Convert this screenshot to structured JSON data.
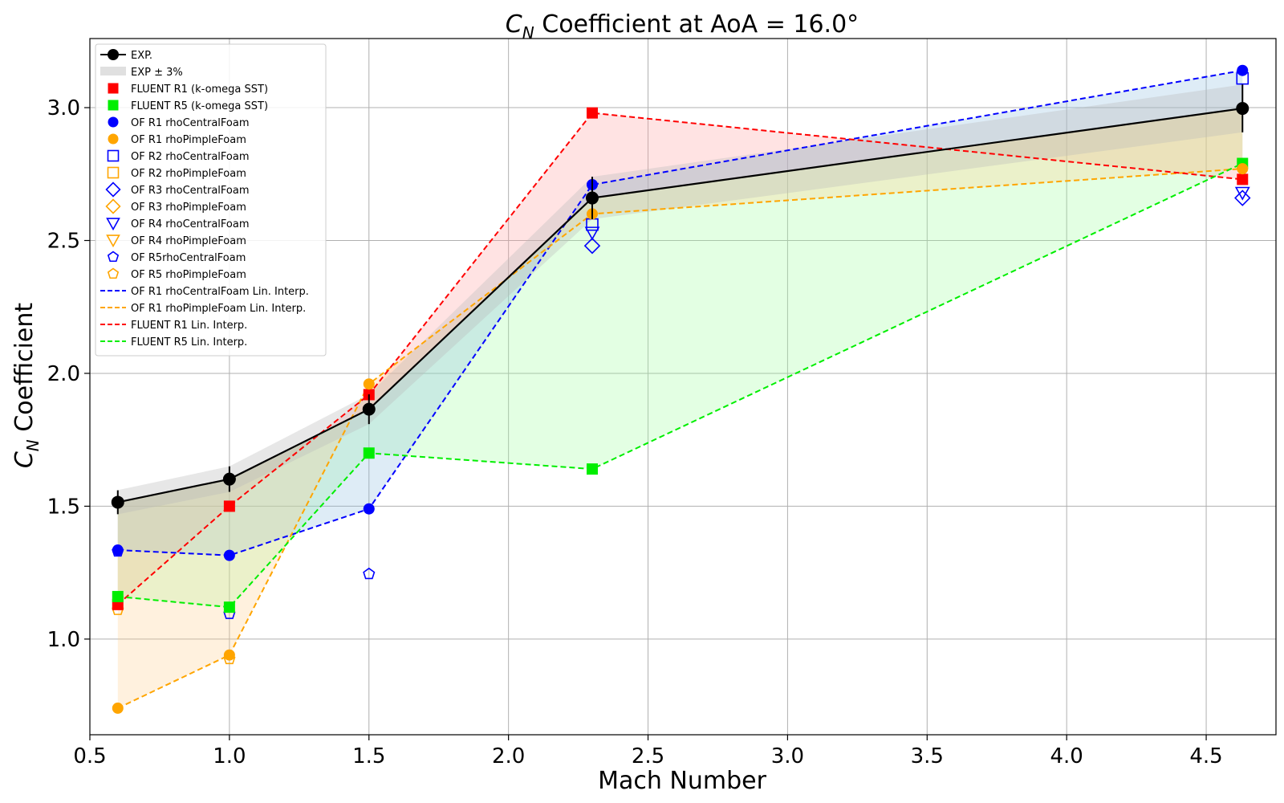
{
  "chart_data": {
    "type": "line",
    "title": {
      "main": "C",
      "sub": "N",
      "rest": " Coefficient at AoA = 16.0°"
    },
    "xlabel": "Mach Number",
    "ylabel": {
      "main": "C",
      "sub": "N",
      "rest": " Coefficient"
    },
    "xlim": [
      0.5,
      4.75
    ],
    "ylim": [
      0.64,
      3.26
    ],
    "xticks": [
      0.5,
      1.0,
      1.5,
      2.0,
      2.5,
      3.0,
      3.5,
      4.0,
      4.5
    ],
    "xtick_labels": [
      "0.5",
      "1.0",
      "1.5",
      "2.0",
      "2.5",
      "3.0",
      "3.5",
      "4.0",
      "4.5"
    ],
    "yticks": [
      1.0,
      1.5,
      2.0,
      2.5,
      3.0
    ],
    "ytick_labels": [
      "1.0",
      "1.5",
      "2.0",
      "2.5",
      "3.0"
    ],
    "grid": true,
    "legend_position": "top-left",
    "x": [
      0.6,
      1.0,
      1.5,
      2.3,
      4.63
    ],
    "exp": {
      "name": "EXP.",
      "color": "#000000",
      "values": [
        1.515,
        1.602,
        1.865,
        2.66,
        2.997
      ],
      "yerr": [
        0.045,
        0.048,
        0.056,
        0.08,
        0.09
      ]
    },
    "exp_band": {
      "name": "EXP ± 3%",
      "fraction": 0.03,
      "color": "#bbbbbb"
    },
    "fills": [
      {
        "series": "fluent_r1",
        "color": "#ff9999"
      },
      {
        "series": "fluent_r5",
        "color": "#99ff99"
      },
      {
        "series": "of_r1_central",
        "color": "#88bbdd"
      },
      {
        "series": "of_r1_pimple",
        "color": "#ffcc88"
      }
    ],
    "series": [
      {
        "key": "fluent_r1",
        "name": "FLUENT R1 (k-omega SST)",
        "marker": "square",
        "filled": true,
        "color": "#ff0000",
        "values": [
          1.13,
          1.5,
          1.92,
          2.98,
          2.73
        ]
      },
      {
        "key": "fluent_r5",
        "name": "FLUENT R5 (k-omega SST)",
        "marker": "square",
        "filled": true,
        "color": "#00ee00",
        "values": [
          1.16,
          1.12,
          1.7,
          1.64,
          2.79
        ]
      },
      {
        "key": "of_r1_central",
        "name": "OF R1 rhoCentralFoam",
        "marker": "circle",
        "filled": true,
        "color": "#0000ff",
        "values": [
          1.335,
          1.315,
          1.49,
          2.71,
          3.14
        ]
      },
      {
        "key": "of_r1_pimple",
        "name": "OF R1 rhoPimpleFoam",
        "marker": "circle",
        "filled": true,
        "color": "#ffa500",
        "values": [
          0.74,
          0.94,
          1.96,
          2.6,
          2.77
        ]
      },
      {
        "key": "of_r2_central",
        "name": "OF R2 rhoCentralFoam",
        "marker": "square",
        "filled": false,
        "color": "#0000ff",
        "values": [
          null,
          null,
          null,
          2.56,
          3.11
        ]
      },
      {
        "key": "of_r2_pimple",
        "name": "OF R2 rhoPimpleFoam",
        "marker": "square",
        "filled": false,
        "color": "#ffa500",
        "values": [
          null,
          null,
          null,
          null,
          null
        ]
      },
      {
        "key": "of_r3_central",
        "name": "OF R3 rhoCentralFoam",
        "marker": "diamond",
        "filled": false,
        "color": "#0000ff",
        "values": [
          null,
          null,
          null,
          2.48,
          2.66
        ]
      },
      {
        "key": "of_r3_pimple",
        "name": "OF R3 rhoPimpleFoam",
        "marker": "diamond",
        "filled": false,
        "color": "#ffa500",
        "values": [
          null,
          null,
          null,
          null,
          null
        ]
      },
      {
        "key": "of_r4_central",
        "name": "OF R4 rhoCentralFoam",
        "marker": "triangle-down",
        "filled": false,
        "color": "#0000ff",
        "values": [
          null,
          null,
          null,
          2.53,
          2.68
        ]
      },
      {
        "key": "of_r4_pimple",
        "name": "OF R4 rhoPimpleFoam",
        "marker": "triangle-down",
        "filled": false,
        "color": "#ffa500",
        "values": [
          null,
          null,
          null,
          null,
          null
        ]
      },
      {
        "key": "of_r5_central",
        "name": "OF R5rhoCentralFoam",
        "marker": "pentagon",
        "filled": false,
        "color": "#0000ff",
        "values": [
          1.33,
          1.095,
          1.245,
          null,
          null
        ]
      },
      {
        "key": "of_r5_pimple",
        "name": "OF R5 rhoPimpleFoam",
        "marker": "pentagon",
        "filled": false,
        "color": "#ffa500",
        "values": [
          1.11,
          0.925,
          null,
          null,
          null
        ]
      }
    ],
    "interp_lines": [
      {
        "series": "of_r1_central",
        "name": "OF R1 rhoCentralFoam Lin. Interp.",
        "color": "#0000ff"
      },
      {
        "series": "of_r1_pimple",
        "name": "OF R1 rhoPimpleFoam Lin. Interp.",
        "color": "#ffa500"
      },
      {
        "series": "fluent_r1",
        "name": "FLUENT R1 Lin. Interp.",
        "color": "#ff0000"
      },
      {
        "series": "fluent_r5",
        "name": "FLUENT R5 Lin. Interp.",
        "color": "#00ee00"
      }
    ]
  }
}
